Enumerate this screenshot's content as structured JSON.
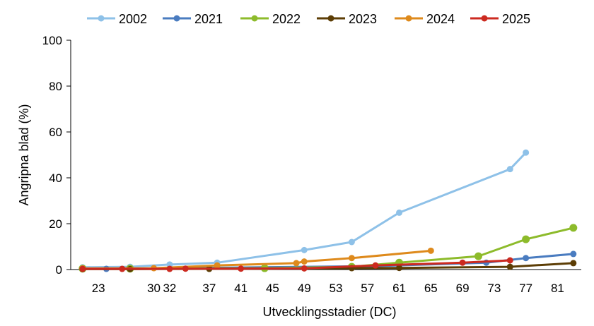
{
  "chart_data": {
    "type": "line",
    "title": "",
    "xlabel": "Utvecklingsstadier (DC)",
    "ylabel": "Angripna blad (%)",
    "xlim": [
      19.5,
      84
    ],
    "ylim": [
      0,
      100
    ],
    "yticks": [
      0,
      20,
      40,
      60,
      80,
      100
    ],
    "xticks": [
      23,
      30,
      32,
      37,
      41,
      45,
      49,
      53,
      57,
      61,
      65,
      69,
      73,
      77,
      81
    ],
    "grid": false,
    "legend_position": "top",
    "series": [
      {
        "name": "2002",
        "color": "#8ec1e8",
        "x": [
          21,
          27,
          32,
          38,
          49,
          55,
          61,
          75,
          77
        ],
        "y": [
          1.0,
          1.2,
          2.2,
          3.0,
          8.5,
          12.0,
          24.8,
          43.8,
          51.0
        ]
      },
      {
        "name": "2021",
        "color": "#4a7cc0",
        "x": [
          21,
          24,
          58,
          72,
          77,
          83
        ],
        "y": [
          0.4,
          0.3,
          1.5,
          3.0,
          5.0,
          6.8
        ]
      },
      {
        "name": "2022",
        "color": "#8dbb2b",
        "x": [
          21,
          27,
          44,
          55,
          61,
          71,
          77,
          83
        ],
        "y": [
          0.4,
          0.4,
          0.6,
          1.2,
          3.0,
          5.8,
          13.2,
          18.2
        ]
      },
      {
        "name": "2023",
        "color": "#5c3d05",
        "x": [
          21,
          27,
          37,
          55,
          61,
          75,
          83
        ],
        "y": [
          0.2,
          0.2,
          0.3,
          0.6,
          0.7,
          1.2,
          2.8
        ]
      },
      {
        "name": "2024",
        "color": "#de8a1c",
        "x": [
          21,
          30,
          38,
          48,
          49,
          55,
          65
        ],
        "y": [
          0.5,
          0.6,
          1.8,
          2.8,
          3.5,
          5.0,
          8.2
        ]
      },
      {
        "name": "2025",
        "color": "#cc2a20",
        "x": [
          21,
          26,
          32,
          34,
          41,
          49,
          58,
          69,
          75
        ],
        "y": [
          0.3,
          0.3,
          0.3,
          0.4,
          0.4,
          0.5,
          1.8,
          3.0,
          4.0
        ]
      }
    ]
  }
}
